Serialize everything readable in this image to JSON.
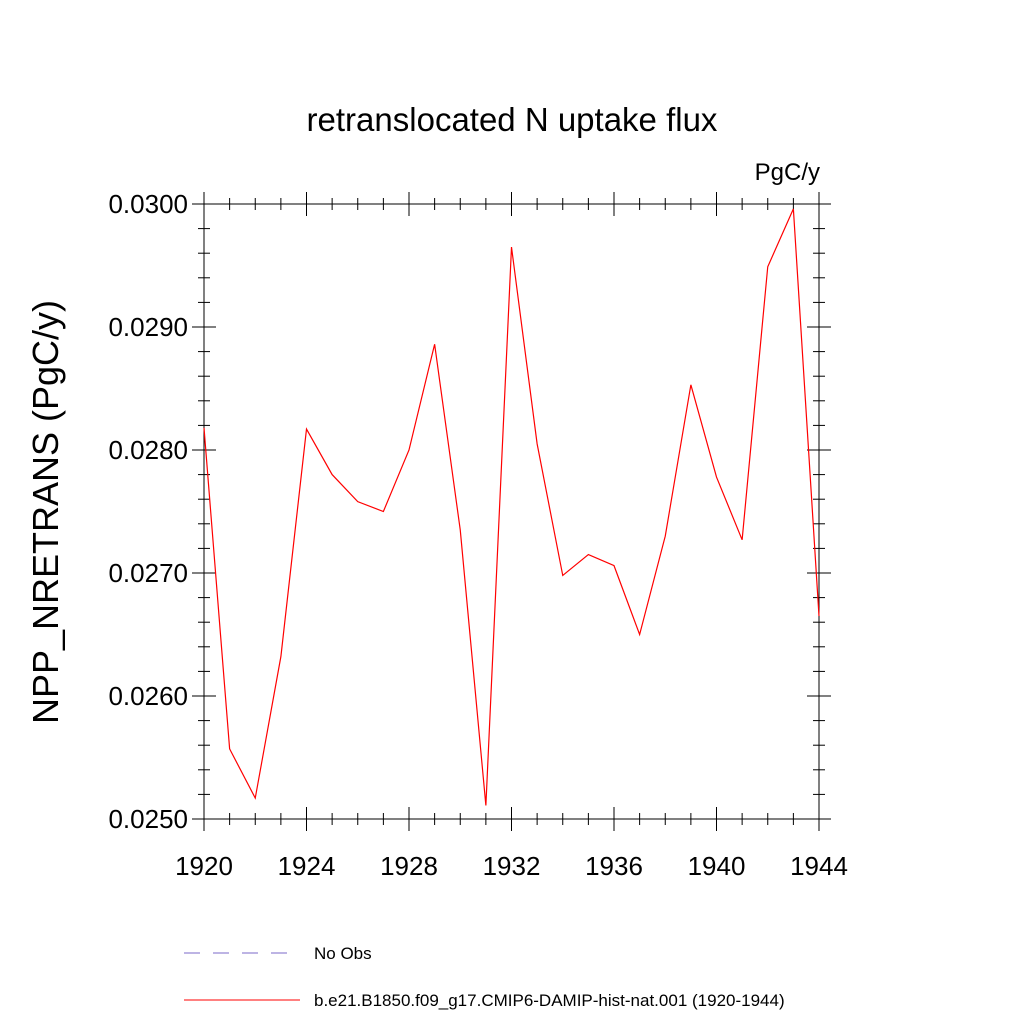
{
  "chart_data": {
    "type": "line",
    "title": "retranslocated N uptake flux",
    "units_label": "PgC/y",
    "xlabel": "",
    "ylabel": "NPP_NRETRANS  (PgC/y)",
    "xlim": [
      1920,
      1944
    ],
    "ylim": [
      0.025,
      0.03
    ],
    "x_ticks": [
      {
        "value": 1920,
        "label": "1920"
      },
      {
        "value": 1924,
        "label": "1924"
      },
      {
        "value": 1928,
        "label": "1928"
      },
      {
        "value": 1932,
        "label": "1932"
      },
      {
        "value": 1936,
        "label": "1936"
      },
      {
        "value": 1940,
        "label": "1940"
      },
      {
        "value": 1944,
        "label": "1944"
      }
    ],
    "y_ticks": [
      {
        "value": 0.025,
        "label": "0.0250"
      },
      {
        "value": 0.026,
        "label": "0.0260"
      },
      {
        "value": 0.027,
        "label": "0.0270"
      },
      {
        "value": 0.028,
        "label": "0.0280"
      },
      {
        "value": 0.029,
        "label": "0.0290"
      },
      {
        "value": 0.03,
        "label": "0.0300"
      }
    ],
    "grid": false,
    "legend_position": "bottom",
    "legend": [
      {
        "label": "No Obs",
        "color": "#7b68c8",
        "style": "dashed"
      },
      {
        "label": "b.e21.B1850.f09_g17.CMIP6-DAMIP-hist-nat.001 (1920-1944)",
        "color": "#ff0000",
        "style": "solid"
      }
    ],
    "series": [
      {
        "name": "b.e21.B1850.f09_g17.CMIP6-DAMIP-hist-nat.001 (1920-1944)",
        "color": "#ff0000",
        "x": [
          1920,
          1921,
          1922,
          1923,
          1924,
          1925,
          1926,
          1927,
          1928,
          1929,
          1930,
          1931,
          1932,
          1933,
          1934,
          1935,
          1936,
          1937,
          1938,
          1939,
          1940,
          1941,
          1942,
          1943,
          1944
        ],
        "values": [
          0.02818,
          0.02557,
          0.02517,
          0.02632,
          0.02817,
          0.0278,
          0.02758,
          0.0275,
          0.028,
          0.02886,
          0.02735,
          0.02511,
          0.02965,
          0.02805,
          0.02698,
          0.02715,
          0.02706,
          0.0265,
          0.0273,
          0.02853,
          0.02778,
          0.02727,
          0.02949,
          0.02996,
          0.02665
        ]
      }
    ]
  }
}
